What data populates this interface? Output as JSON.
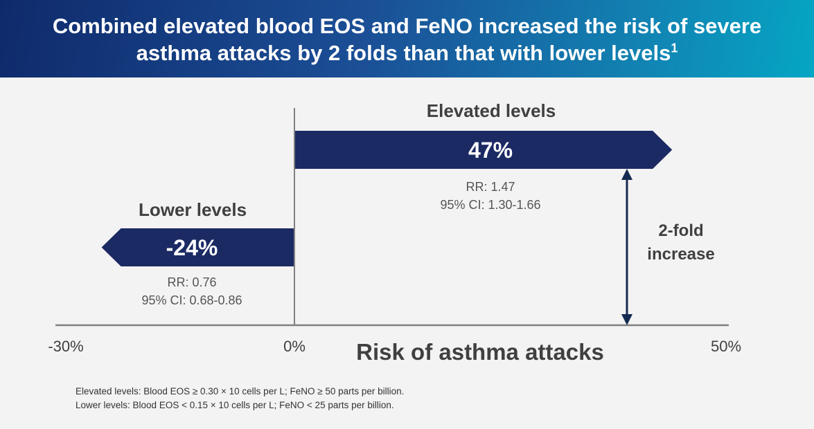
{
  "title": {
    "line1": "Combined elevated blood EOS and FeNO increased the risk of severe",
    "line2": "asthma attacks by 2 folds than that with lower levels",
    "superscript": "1"
  },
  "chart_data": {
    "type": "bar",
    "orientation": "horizontal",
    "categories": [
      "Elevated levels",
      "Lower levels"
    ],
    "values": [
      47,
      -24
    ],
    "value_labels": [
      "47%",
      "-24%"
    ],
    "xlabel": "Risk of asthma attacks",
    "ylabel": "",
    "xlim": [
      -30,
      50
    ],
    "tick_labels": [
      "-30%",
      "0%",
      "50%"
    ],
    "tick_values": [
      -30,
      0,
      50
    ],
    "bar_color": "#1b2a63",
    "annotations": {
      "elevated_rr": "RR: 1.47",
      "elevated_ci": "95% CI: 1.30-1.66",
      "lower_rr": "RR: 0.76",
      "lower_ci": "95% CI: 0.68-0.86",
      "increase_line1": "2-fold",
      "increase_line2": "increase"
    }
  },
  "footnotes": {
    "elevated": "Elevated  levels:  Blood  EOS  ≥ 0.30 × 10 cells per L; FeNO  ≥ 50 parts per billion.",
    "lower": "Lower levels:  Blood  EOS  < 0.15 × 10 cells per L; FeNO  < 25 parts per billion."
  }
}
